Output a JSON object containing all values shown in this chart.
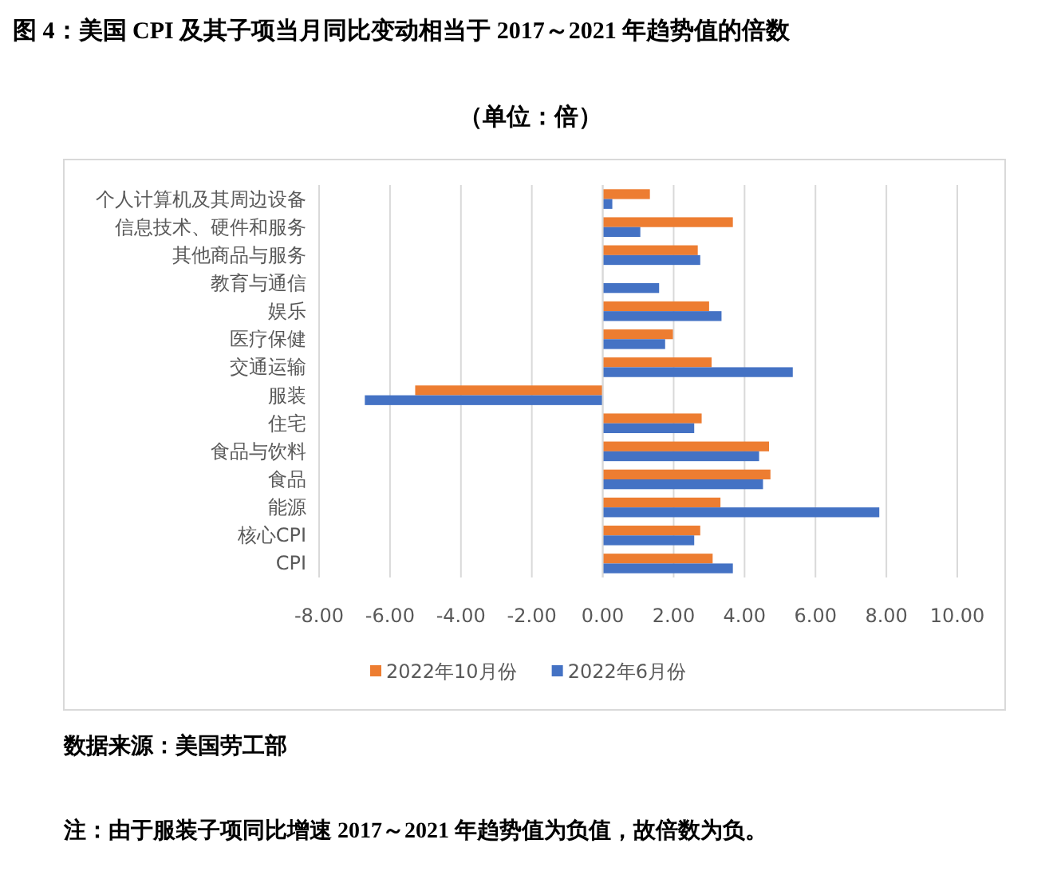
{
  "chart_data": {
    "type": "bar",
    "orientation": "horizontal",
    "title": "图 4：美国 CPI 及其子项当月同比变动相当于 2017～2021 年趋势值的倍数",
    "subtitle": "（单位：倍）",
    "categories": [
      "个人计算机及其周边设备",
      "信息技术、硬件和服务",
      "其他商品与服务",
      "教育与通信",
      "娱乐",
      "医疗保健",
      "交通运输",
      "服装",
      "住宅",
      "食品与饮料",
      "食品",
      "能源",
      "核心CPI",
      "CPI"
    ],
    "series": [
      {
        "name": "2022年10月份",
        "color": "#ed7d31",
        "values": [
          1.33,
          3.67,
          2.68,
          0,
          3.0,
          1.98,
          3.07,
          -5.29,
          2.79,
          4.69,
          4.73,
          3.32,
          2.75,
          3.1
        ]
      },
      {
        "name": "2022年6月份",
        "color": "#4472c4",
        "values": [
          0.27,
          1.06,
          2.75,
          1.59,
          3.35,
          1.76,
          5.36,
          -6.71,
          2.58,
          4.41,
          4.52,
          7.8,
          2.58,
          3.67
        ]
      }
    ],
    "xlim": [
      -8,
      10
    ],
    "xticks": [
      {
        "value": -8,
        "label": "-8.00"
      },
      {
        "value": -6,
        "label": "-6.00"
      },
      {
        "value": -4,
        "label": "-4.00"
      },
      {
        "value": -2,
        "label": "-2.00"
      },
      {
        "value": 0,
        "label": "0.00"
      },
      {
        "value": 2,
        "label": "2.00"
      },
      {
        "value": 4,
        "label": "4.00"
      },
      {
        "value": 6,
        "label": "6.00"
      },
      {
        "value": 8,
        "label": "8.00"
      },
      {
        "value": 10,
        "label": "10.00"
      }
    ],
    "grid": "x",
    "legend": "bottom",
    "annotations": [
      "数据来源：美国劳工部",
      "注：由于服装子项同比增速 2017～2021 年趋势值为负值，故倍数为负。"
    ]
  }
}
